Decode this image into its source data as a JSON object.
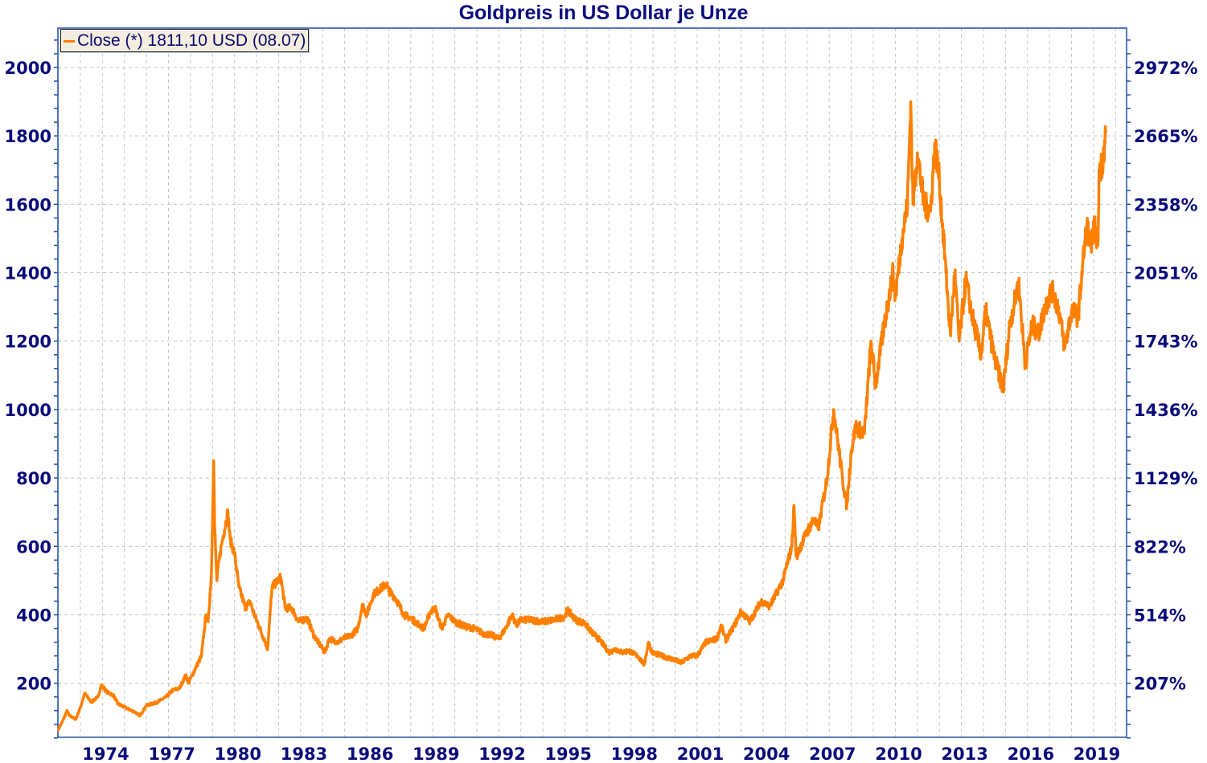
{
  "chart_data": {
    "type": "line",
    "title": "Goldpreis in US Dollar je Unze",
    "xlabel": "",
    "ylabel": "",
    "ylim": [
      42,
      2115
    ],
    "xlim": [
      1972.98,
      2021.5
    ],
    "grid": true,
    "legend_placement": "top-left",
    "legend": [
      {
        "label": "Close (*) 1811,10 USD (08.07)",
        "color": "#ff8000"
      }
    ],
    "left_ticks": [
      200,
      400,
      600,
      800,
      1000,
      1200,
      1400,
      1600,
      1800,
      2000
    ],
    "right_ticks": [
      "207%",
      "514%",
      "822%",
      "1129%",
      "1436%",
      "1743%",
      "2051%",
      "2358%",
      "2665%",
      "2972%"
    ],
    "x_ticks": [
      "1974",
      "1977",
      "1980",
      "1983",
      "1986",
      "1989",
      "1992",
      "1995",
      "1998",
      "2001",
      "2004",
      "2007",
      "2010",
      "2013",
      "2016",
      "2019"
    ],
    "series": [
      {
        "name": "Close",
        "color": "#ff8000",
        "x": [
          1973.0,
          1973.2,
          1973.4,
          1973.5,
          1973.8,
          1974.0,
          1974.2,
          1974.5,
          1974.8,
          1974.95,
          1975.2,
          1975.5,
          1975.7,
          1976.0,
          1976.5,
          1976.7,
          1977.0,
          1977.5,
          1977.9,
          1978.2,
          1978.5,
          1978.8,
          1978.9,
          1979.2,
          1979.5,
          1979.7,
          1979.8,
          1979.95,
          1980.05,
          1980.1,
          1980.2,
          1980.3,
          1980.45,
          1980.7,
          1980.8,
          1981.0,
          1981.2,
          1981.5,
          1981.7,
          1981.9,
          1982.4,
          1982.5,
          1982.7,
          1983.1,
          1983.3,
          1983.6,
          1983.9,
          1984.3,
          1984.6,
          1985.1,
          1985.3,
          1985.7,
          1985.9,
          1986.3,
          1986.6,
          1986.8,
          1987.0,
          1987.3,
          1987.9,
          1988.0,
          1988.3,
          1988.7,
          1989.0,
          1989.4,
          1989.6,
          1989.9,
          1990.1,
          1990.4,
          1990.7,
          1991.0,
          1991.5,
          1991.9,
          1992.3,
          1992.7,
          1993.0,
          1993.3,
          1993.6,
          1993.8,
          1994.0,
          1994.5,
          1995.0,
          1995.5,
          1996.0,
          1996.1,
          1996.5,
          1996.9,
          1997.2,
          1997.6,
          1998.0,
          1998.3,
          1998.6,
          1998.9,
          1999.3,
          1999.6,
          1999.8,
          1999.95,
          2000.4,
          2000.9,
          2001.3,
          2001.7,
          2002.0,
          2002.4,
          2002.9,
          2003.1,
          2003.3,
          2003.7,
          2004.0,
          2004.4,
          2004.9,
          2005.3,
          2005.9,
          2006.3,
          2006.4,
          2006.5,
          2006.9,
          2007.3,
          2007.5,
          2007.9,
          2008.2,
          2008.6,
          2008.8,
          2009.0,
          2009.2,
          2009.6,
          2009.9,
          2010.1,
          2010.5,
          2010.9,
          2011.0,
          2011.3,
          2011.55,
          2011.7,
          2011.8,
          2012.0,
          2012.3,
          2012.6,
          2012.8,
          2013.0,
          2013.3,
          2013.5,
          2013.7,
          2013.9,
          2014.2,
          2014.5,
          2014.9,
          2015.1,
          2015.5,
          2015.9,
          2016.2,
          2016.6,
          2016.9,
          2017.2,
          2017.5,
          2017.8,
          2018.1,
          2018.4,
          2018.7,
          2019.0,
          2019.3,
          2019.5,
          2019.7,
          2019.9,
          2020.0,
          2020.2,
          2020.25,
          2020.4,
          2020.55
        ],
        "values": [
          65,
          90,
          120,
          105,
          95,
          130,
          170,
          145,
          160,
          195,
          175,
          165,
          140,
          130,
          115,
          105,
          135,
          145,
          160,
          180,
          185,
          225,
          200,
          240,
          280,
          400,
          380,
          520,
          850,
          650,
          500,
          560,
          620,
          700,
          620,
          580,
          480,
          420,
          440,
          400,
          320,
          300,
          480,
          510,
          420,
          420,
          380,
          390,
          340,
          290,
          330,
          320,
          330,
          340,
          360,
          430,
          400,
          460,
          490,
          470,
          450,
          400,
          390,
          370,
          360,
          410,
          420,
          360,
          400,
          380,
          365,
          360,
          345,
          340,
          330,
          360,
          400,
          370,
          385,
          385,
          380,
          385,
          395,
          415,
          385,
          375,
          350,
          325,
          290,
          300,
          290,
          295,
          280,
          255,
          320,
          290,
          280,
          270,
          260,
          280,
          280,
          320,
          330,
          370,
          325,
          370,
          410,
          380,
          440,
          425,
          500,
          600,
          720,
          570,
          630,
          680,
          650,
          800,
          1000,
          800,
          720,
          880,
          950,
          930,
          1200,
          1070,
          1250,
          1400,
          1330,
          1500,
          1600,
          1900,
          1600,
          1750,
          1600,
          1580,
          1780,
          1670,
          1400,
          1220,
          1400,
          1200,
          1380,
          1270,
          1160,
          1290,
          1150,
          1060,
          1250,
          1370,
          1130,
          1250,
          1220,
          1300,
          1350,
          1300,
          1180,
          1290,
          1270,
          1420,
          1540,
          1460,
          1550,
          1480,
          1700,
          1720,
          1811
        ]
      }
    ]
  }
}
